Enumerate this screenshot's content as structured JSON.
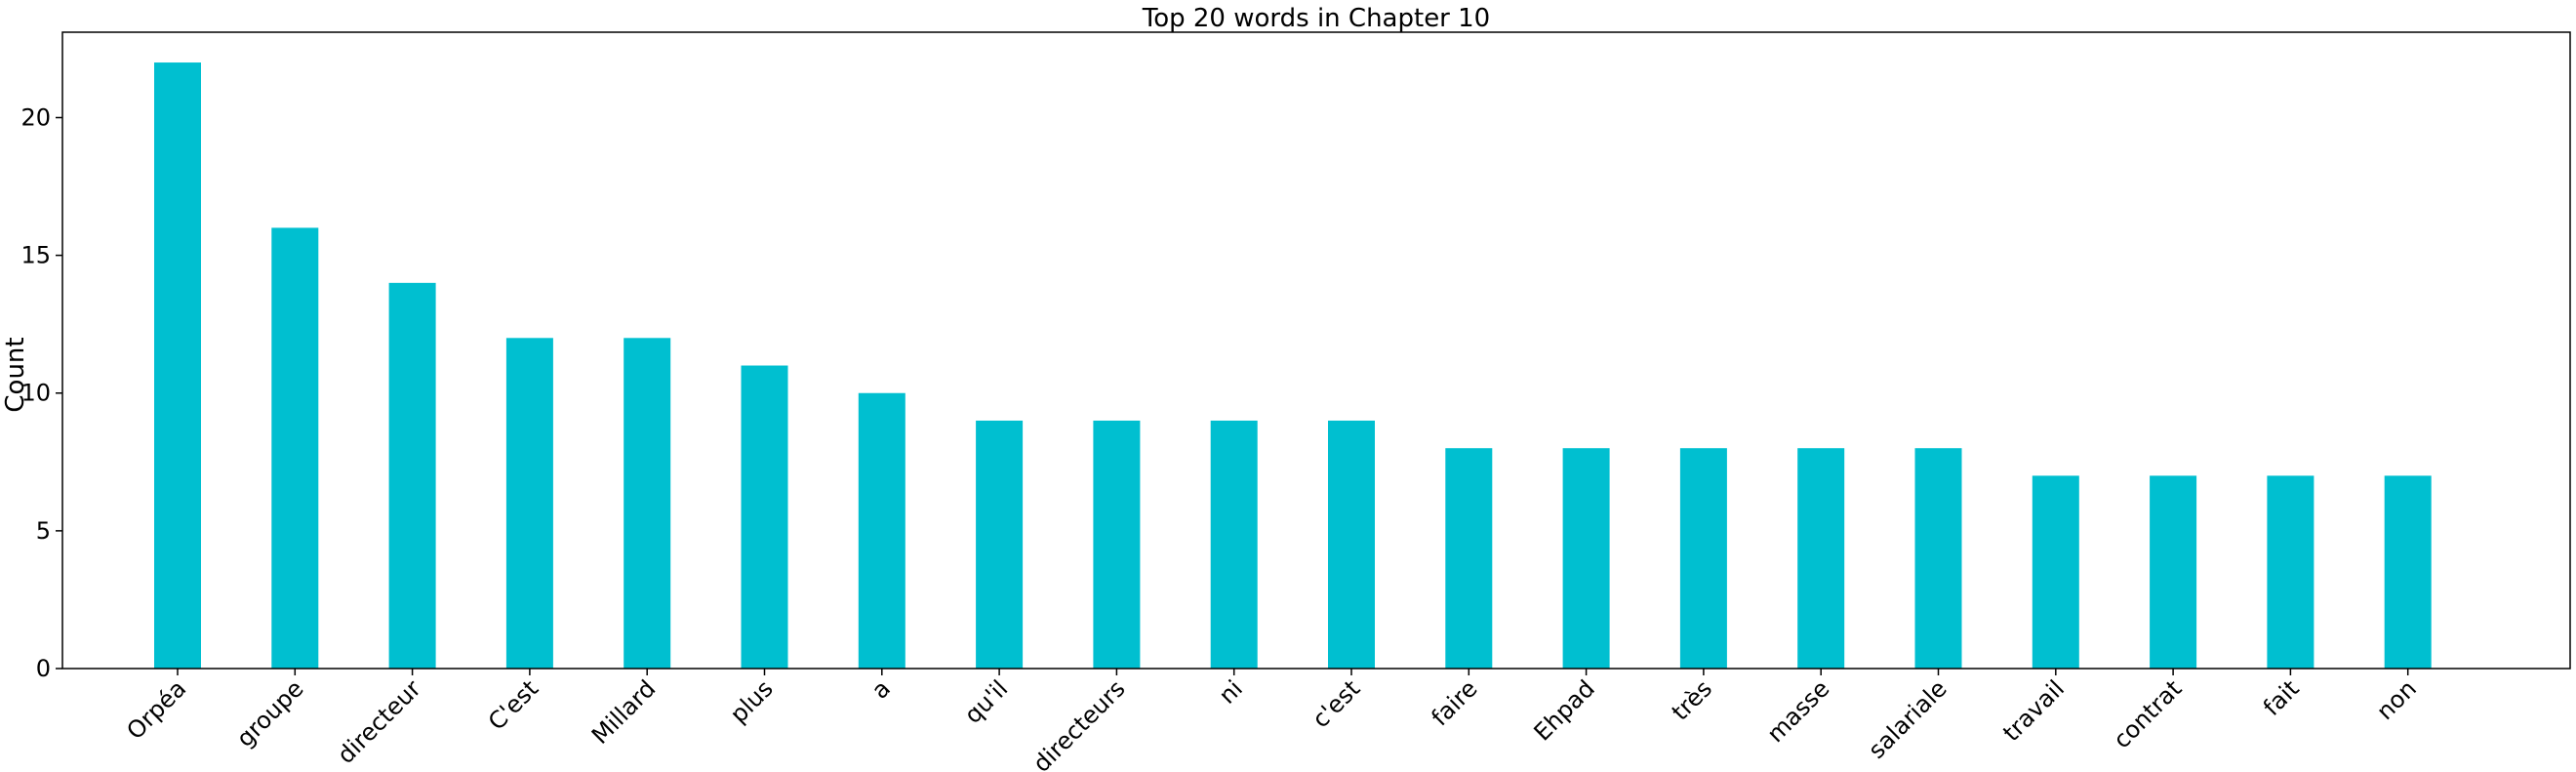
{
  "chart_data": {
    "type": "bar",
    "title": "Top 20 words in Chapter 10",
    "xlabel": "",
    "ylabel": "Count",
    "categories": [
      "Orpéa",
      "groupe",
      "directeur",
      "C'est",
      "Millard",
      "plus",
      "a",
      "qu'il",
      "directeurs",
      "ni",
      "c'est",
      "faire",
      "Ehpad",
      "très",
      "masse",
      "salariale",
      "travail",
      "contrat",
      "fait",
      "non"
    ],
    "values": [
      22,
      16,
      14,
      12,
      12,
      11,
      10,
      9,
      9,
      9,
      9,
      8,
      8,
      8,
      8,
      8,
      7,
      7,
      7,
      7
    ],
    "ylim": [
      0,
      23.1
    ],
    "yticks": [
      0,
      5,
      10,
      15,
      20
    ],
    "grid": false,
    "bar_color": "#00bfd0"
  }
}
